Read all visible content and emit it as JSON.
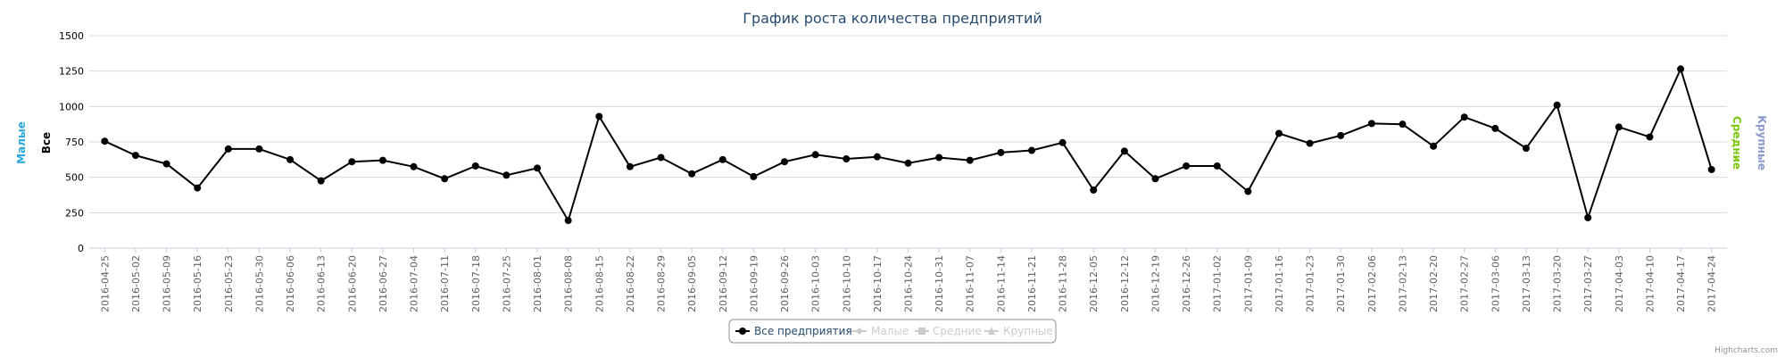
{
  "chart_data": {
    "type": "line",
    "title": "График роста количества предприятий",
    "y_axes": {
      "left_outer_label": "Малые",
      "left_inner_label": "Все",
      "right_inner_label": "Средние",
      "right_outer_label": "Крупные",
      "ticks": [
        0,
        250,
        500,
        750,
        1000,
        1250,
        1500
      ],
      "ylim": [
        0,
        1500
      ]
    },
    "x": [
      "2016-04-25",
      "2016-05-02",
      "2016-05-09",
      "2016-05-16",
      "2016-05-23",
      "2016-05-30",
      "2016-06-06",
      "2016-06-13",
      "2016-06-20",
      "2016-06-27",
      "2016-07-04",
      "2016-07-11",
      "2016-07-18",
      "2016-07-25",
      "2016-08-01",
      "2016-08-08",
      "2016-08-15",
      "2016-08-22",
      "2016-08-29",
      "2016-09-05",
      "2016-09-12",
      "2016-09-19",
      "2016-09-26",
      "2016-10-03",
      "2016-10-10",
      "2016-10-17",
      "2016-10-24",
      "2016-10-31",
      "2016-11-07",
      "2016-11-14",
      "2016-11-21",
      "2016-11-28",
      "2016-12-05",
      "2016-12-12",
      "2016-12-19",
      "2016-12-26",
      "2017-01-02",
      "2017-01-09",
      "2017-01-16",
      "2017-01-23",
      "2017-01-30",
      "2017-02-06",
      "2017-02-13",
      "2017-02-20",
      "2017-02-27",
      "2017-03-06",
      "2017-03-13",
      "2017-03-20",
      "2017-03-27",
      "2017-04-03",
      "2017-04-10",
      "2017-04-17",
      "2017-04-24"
    ],
    "series": [
      {
        "name": "Все предприятия",
        "visible": true,
        "color": "#000000",
        "marker": "circle",
        "values": [
          755,
          655,
          595,
          425,
          700,
          700,
          625,
          475,
          610,
          620,
          575,
          490,
          580,
          515,
          565,
          195,
          930,
          575,
          640,
          525,
          625,
          505,
          610,
          660,
          630,
          645,
          600,
          640,
          620,
          675,
          690,
          745,
          410,
          685,
          490,
          580,
          580,
          400,
          810,
          740,
          795,
          880,
          875,
          720,
          925,
          845,
          705,
          1010,
          215,
          855,
          785,
          1265,
          555
        ]
      },
      {
        "name": "Малые",
        "visible": false,
        "color": "#cccccc",
        "marker": "diamond"
      },
      {
        "name": "Средние",
        "visible": false,
        "color": "#cccccc",
        "marker": "square"
      },
      {
        "name": "Крупные",
        "visible": false,
        "color": "#cccccc",
        "marker": "triangle"
      }
    ],
    "legend_position": "bottom-center",
    "grid": true,
    "credits": "Highcharts.com",
    "colors": {
      "title": "#274b6d",
      "axis_small": "#2aa9e0",
      "axis_all": "#000000",
      "axis_medium": "#7ac70c",
      "axis_large": "#8b98cf",
      "grid": "#d8d8d8",
      "legend_active": "#274b6d",
      "legend_hidden": "#cccccc"
    }
  }
}
